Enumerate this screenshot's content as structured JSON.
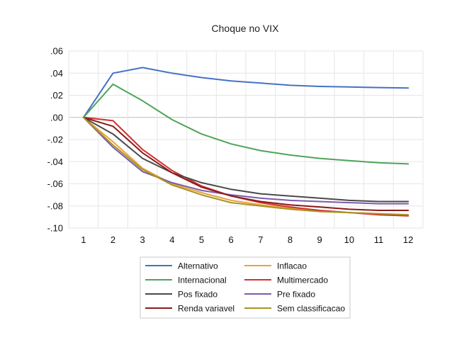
{
  "chart_data": {
    "type": "line",
    "title": "Choque no VIX",
    "xlabel": "",
    "ylabel": "",
    "categories": [
      "1",
      "2",
      "3",
      "4",
      "5",
      "6",
      "7",
      "8",
      "9",
      "10",
      "11",
      "12"
    ],
    "yticks": [
      ".06",
      ".04",
      ".02",
      ".00",
      "-.02",
      "-.04",
      "-.06",
      "-.08",
      "-.10"
    ],
    "ylim": [
      -0.1,
      0.06
    ],
    "grid": true,
    "legend_position": "bottom",
    "series": [
      {
        "name": "Alternativo",
        "color": "#4472c4",
        "values": [
          0.0,
          0.04,
          0.045,
          0.04,
          0.036,
          0.033,
          0.031,
          0.029,
          0.028,
          0.0275,
          0.027,
          0.0265
        ]
      },
      {
        "name": "Inflacao",
        "color": "#e8a33c",
        "values": [
          0.0,
          -0.022,
          -0.046,
          -0.06,
          -0.068,
          -0.075,
          -0.079,
          -0.082,
          -0.085,
          -0.086,
          -0.087,
          -0.088
        ]
      },
      {
        "name": "Internacional",
        "color": "#4fa45a",
        "values": [
          0.0,
          0.03,
          0.015,
          -0.002,
          -0.015,
          -0.024,
          -0.03,
          -0.034,
          -0.037,
          -0.039,
          -0.041,
          -0.042
        ]
      },
      {
        "name": "Multimercado",
        "color": "#d2312f",
        "values": [
          0.0,
          -0.003,
          -0.029,
          -0.048,
          -0.062,
          -0.071,
          -0.077,
          -0.081,
          -0.084,
          -0.086,
          -0.088,
          -0.089
        ]
      },
      {
        "name": "Pos fixado",
        "color": "#4a4a4a",
        "values": [
          0.0,
          -0.015,
          -0.037,
          -0.05,
          -0.059,
          -0.065,
          -0.069,
          -0.071,
          -0.073,
          -0.075,
          -0.076,
          -0.076
        ]
      },
      {
        "name": "Pre fixado",
        "color": "#7b5ca8",
        "values": [
          0.0,
          -0.027,
          -0.049,
          -0.059,
          -0.066,
          -0.07,
          -0.073,
          -0.075,
          -0.076,
          -0.077,
          -0.078,
          -0.078
        ]
      },
      {
        "name": "Renda variavel",
        "color": "#8b1a1a",
        "values": [
          0.0,
          -0.008,
          -0.032,
          -0.05,
          -0.063,
          -0.071,
          -0.076,
          -0.079,
          -0.081,
          -0.083,
          -0.084,
          -0.084
        ]
      },
      {
        "name": "Sem classificacao",
        "color": "#a89425",
        "values": [
          0.0,
          -0.025,
          -0.047,
          -0.061,
          -0.07,
          -0.077,
          -0.08,
          -0.083,
          -0.085,
          -0.086,
          -0.087,
          -0.088
        ]
      }
    ]
  }
}
